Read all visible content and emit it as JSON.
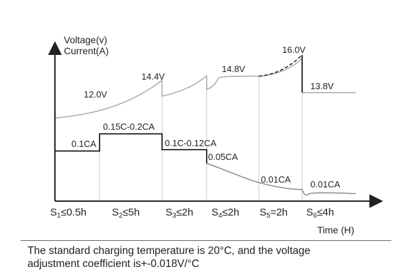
{
  "diagram": {
    "y_axis_title_line1": "Voltage(v)",
    "y_axis_title_line2": "Current(A)",
    "x_axis_title": "Time (H)",
    "voltage_labels": [
      "12.0V",
      "14.4V",
      "14.8V",
      "16.0V",
      "13.8V"
    ],
    "current_labels": [
      "0.1CA",
      "0.15C-0.2CA",
      "0.1C-0.12CA",
      "0.05CA",
      "0.01CA",
      "0.01CA"
    ],
    "stages": [
      {
        "prefix": "S",
        "sub": "1",
        "suffix": "≤0.5h"
      },
      {
        "prefix": "S",
        "sub": "2",
        "suffix": "≤5h"
      },
      {
        "prefix": "S",
        "sub": "3",
        "suffix": "≤2h"
      },
      {
        "prefix": "S",
        "sub": "4",
        "suffix": "≤2h"
      },
      {
        "prefix": "S",
        "sub": "5",
        "suffix": "=2h"
      },
      {
        "prefix": "S",
        "sub": "6",
        "suffix": "≤4h"
      }
    ]
  },
  "footnote": {
    "line1": "The standard charging temperature is 20°C, and the voltage",
    "line2": "adjustment coefficient is+-0.018V/°C"
  }
}
